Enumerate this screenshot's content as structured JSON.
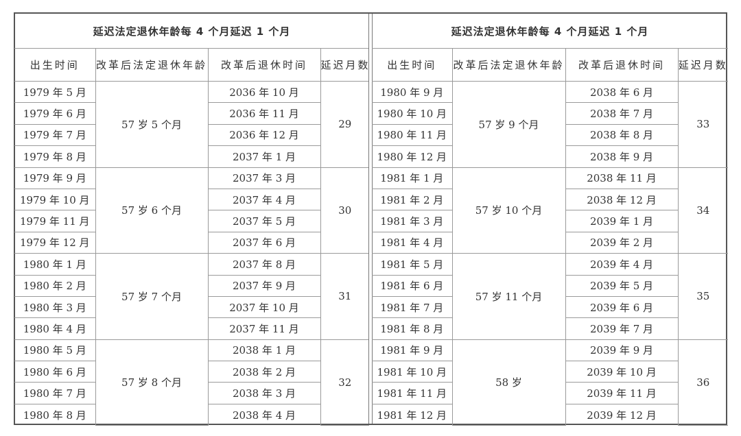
{
  "tables": [
    {
      "title": "延迟法定退休年龄每 4 个月延迟 1 个月",
      "headers": [
        "出生时间",
        "改革后法定退休年龄",
        "改革后退休时间",
        "延迟月数"
      ],
      "groups": [
        {
          "age": "57 岁 5 个月",
          "delay": "29",
          "rows": [
            [
              "1979 年 5 月",
              "2036 年 10 月"
            ],
            [
              "1979 年 6 月",
              "2036 年 11 月"
            ],
            [
              "1979 年 7 月",
              "2036 年 12 月"
            ],
            [
              "1979 年 8 月",
              "2037 年 1 月"
            ]
          ]
        },
        {
          "age": "57 岁 6 个月",
          "delay": "30",
          "rows": [
            [
              "1979 年 9 月",
              "2037 年 3 月"
            ],
            [
              "1979 年 10 月",
              "2037 年 4 月"
            ],
            [
              "1979 年 11 月",
              "2037 年 5 月"
            ],
            [
              "1979 年 12 月",
              "2037 年 6 月"
            ]
          ]
        },
        {
          "age": "57 岁 7 个月",
          "delay": "31",
          "rows": [
            [
              "1980 年 1 月",
              "2037 年 8 月"
            ],
            [
              "1980 年 2 月",
              "2037 年 9 月"
            ],
            [
              "1980 年 3 月",
              "2037 年 10 月"
            ],
            [
              "1980 年 4 月",
              "2037 年 11 月"
            ]
          ]
        },
        {
          "age": "57 岁 8 个月",
          "delay": "32",
          "rows": [
            [
              "1980 年 5 月",
              "2038 年 1 月"
            ],
            [
              "1980 年 6 月",
              "2038 年 2 月"
            ],
            [
              "1980 年 7 月",
              "2038 年 3 月"
            ],
            [
              "1980 年 8 月",
              "2038 年 4 月"
            ]
          ]
        }
      ]
    },
    {
      "title": "延迟法定退休年龄每 4 个月延迟 1 个月",
      "headers": [
        "出生时间",
        "改革后法定退休年龄",
        "改革后退休时间",
        "延迟月数"
      ],
      "groups": [
        {
          "age": "57 岁 9 个月",
          "delay": "33",
          "rows": [
            [
              "1980 年 9 月",
              "2038 年 6 月"
            ],
            [
              "1980 年 10 月",
              "2038 年 7 月"
            ],
            [
              "1980 年 11 月",
              "2038 年 8 月"
            ],
            [
              "1980 年 12 月",
              "2038 年 9 月"
            ]
          ]
        },
        {
          "age": "57 岁 10 个月",
          "delay": "34",
          "rows": [
            [
              "1981 年 1 月",
              "2038 年 11 月"
            ],
            [
              "1981 年 2 月",
              "2038 年 12 月"
            ],
            [
              "1981 年 3 月",
              "2039 年 1 月"
            ],
            [
              "1981 年 4 月",
              "2039 年 2 月"
            ]
          ]
        },
        {
          "age": "57 岁 11 个月",
          "delay": "35",
          "rows": [
            [
              "1981 年 5 月",
              "2039 年 4 月"
            ],
            [
              "1981 年 6 月",
              "2039 年 5 月"
            ],
            [
              "1981 年 7 月",
              "2039 年 6 月"
            ],
            [
              "1981 年 8 月",
              "2039 年 7 月"
            ]
          ]
        },
        {
          "age": "58 岁",
          "delay": "36",
          "rows": [
            [
              "1981 年 9 月",
              "2039 年 9 月"
            ],
            [
              "1981 年 10 月",
              "2039 年 10 月"
            ],
            [
              "1981 年 11 月",
              "2039 年 11 月"
            ],
            [
              "1981 年 12 月",
              "2039 年 12 月"
            ]
          ]
        }
      ]
    }
  ]
}
